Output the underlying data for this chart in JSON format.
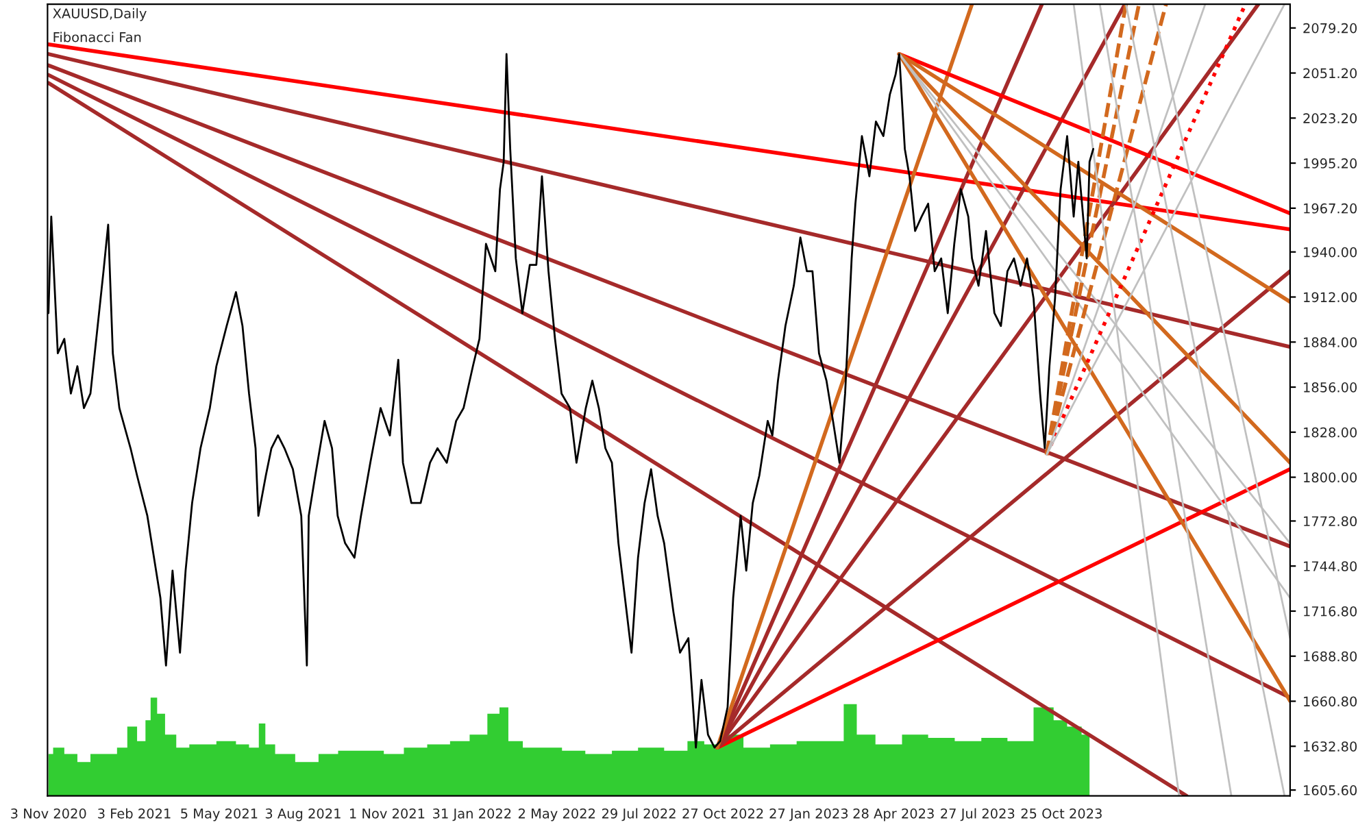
{
  "chart_data": {
    "type": "line",
    "title": "XAUUSD,Daily",
    "subtitle": "Fibonacci Fan",
    "xlim": [
      "2020-11-02",
      "2024-06-26"
    ],
    "ylim": [
      1602,
      2094
    ],
    "xticks": [
      {
        "value": "2020-11-03",
        "label": "3 Nov 2020"
      },
      {
        "value": "2021-02-03",
        "label": "3 Feb 2021"
      },
      {
        "value": "2021-05-05",
        "label": "5 May 2021"
      },
      {
        "value": "2021-08-03",
        "label": "3 Aug 2021"
      },
      {
        "value": "2021-11-01",
        "label": "1 Nov 2021"
      },
      {
        "value": "2022-01-31",
        "label": "31 Jan 2022"
      },
      {
        "value": "2022-05-02",
        "label": "2 May 2022"
      },
      {
        "value": "2022-07-29",
        "label": "29 Jul 2022"
      },
      {
        "value": "2022-10-27",
        "label": "27 Oct 2022"
      },
      {
        "value": "2023-01-27",
        "label": "27 Jan 2023"
      },
      {
        "value": "2023-04-28",
        "label": "28 Apr 2023"
      },
      {
        "value": "2023-07-27",
        "label": "27 Jul 2023"
      },
      {
        "value": "2023-10-25",
        "label": "25 Oct 2023"
      }
    ],
    "yticks": [
      {
        "value": 1605.6,
        "label": "1605.60"
      },
      {
        "value": 1632.8,
        "label": "1632.80"
      },
      {
        "value": 1660.8,
        "label": "1660.80"
      },
      {
        "value": 1688.8,
        "label": "1688.80"
      },
      {
        "value": 1716.8,
        "label": "1716.80"
      },
      {
        "value": 1744.8,
        "label": "1744.80"
      },
      {
        "value": 1772.8,
        "label": "1772.80"
      },
      {
        "value": 1800,
        "label": "1800.00"
      },
      {
        "value": 1828,
        "label": "1828.00"
      },
      {
        "value": 1856,
        "label": "1856.00"
      },
      {
        "value": 1884,
        "label": "1884.00"
      },
      {
        "value": 1912,
        "label": "1912.00"
      },
      {
        "value": 1940,
        "label": "1940.00"
      },
      {
        "value": 1967.2,
        "label": "1967.20"
      },
      {
        "value": 1995.2,
        "label": "1995.20"
      },
      {
        "value": 2023.2,
        "label": "2023.20"
      },
      {
        "value": 2051.2,
        "label": "2051.20"
      },
      {
        "value": 2079.2,
        "label": "2079.20"
      }
    ],
    "grid": false,
    "legend": false,
    "series": [
      {
        "type": "area",
        "color": "#32cd32",
        "x": [
          "2020-11-03",
          "2020-11-13",
          "2020-11-27",
          "2020-12-11",
          "2020-12-25",
          "2021-01-08",
          "2021-01-23",
          "2021-01-30",
          "2021-02-13",
          "2021-02-17",
          "2021-02-24",
          "2021-03-03",
          "2021-03-13",
          "2021-03-27",
          "2021-04-10",
          "2021-04-25",
          "2021-05-09",
          "2021-05-16",
          "2021-05-30",
          "2021-06-13",
          "2021-06-20",
          "2021-06-27",
          "2021-07-11",
          "2021-08-09",
          "2021-08-30",
          "2021-09-20",
          "2021-10-18",
          "2021-11-08",
          "2021-11-30",
          "2021-12-28",
          "2022-01-18",
          "2022-02-08",
          "2022-02-25",
          "2022-03-06",
          "2022-03-16",
          "2022-04-06",
          "2022-04-27",
          "2022-05-18",
          "2022-06-16",
          "2022-07-14",
          "2022-08-11",
          "2022-09-08",
          "2022-09-30",
          "2022-10-14",
          "2022-11-04",
          "2022-12-02",
          "2022-12-31",
          "2023-01-28",
          "2023-02-25",
          "2023-03-14",
          "2023-03-25",
          "2023-04-23",
          "2023-05-21",
          "2023-06-18",
          "2023-07-17",
          "2023-08-14",
          "2023-09-11",
          "2023-10-09",
          "2023-10-24",
          "2023-11-07",
          "2023-11-24"
        ],
        "values": [
          1628,
          1632,
          1628,
          1623,
          1628,
          1628,
          1632,
          1645,
          1636,
          1649,
          1663,
          1653,
          1640,
          1632,
          1634,
          1634,
          1636,
          1636,
          1634,
          1632,
          1647,
          1634,
          1628,
          1623,
          1628,
          1630,
          1630,
          1628,
          1632,
          1634,
          1636,
          1640,
          1653,
          1657,
          1636,
          1632,
          1632,
          1630,
          1628,
          1630,
          1632,
          1630,
          1636,
          1634,
          1640,
          1632,
          1634,
          1636,
          1636,
          1659,
          1640,
          1634,
          1640,
          1638,
          1636,
          1638,
          1636,
          1657,
          1649,
          1645,
          1640
        ]
      },
      {
        "color": "#000000",
        "x": [
          "2020-11-03",
          "2020-11-06",
          "2020-11-13",
          "2020-11-20",
          "2020-11-27",
          "2020-12-04",
          "2020-12-11",
          "2020-12-18",
          "2021-01-01",
          "2021-01-06",
          "2021-01-11",
          "2021-01-18",
          "2021-01-30",
          "2021-02-06",
          "2021-02-17",
          "2021-03-03",
          "2021-03-09",
          "2021-03-16",
          "2021-03-24",
          "2021-03-30",
          "2021-04-06",
          "2021-04-15",
          "2021-04-25",
          "2021-05-02",
          "2021-05-13",
          "2021-05-23",
          "2021-05-30",
          "2021-06-06",
          "2021-06-13",
          "2021-06-16",
          "2021-06-24",
          "2021-06-30",
          "2021-07-07",
          "2021-07-14",
          "2021-07-23",
          "2021-08-01",
          "2021-08-07",
          "2021-08-09",
          "2021-08-16",
          "2021-08-26",
          "2021-09-03",
          "2021-09-09",
          "2021-09-17",
          "2021-09-27",
          "2021-10-04",
          "2021-10-14",
          "2021-10-25",
          "2021-11-04",
          "2021-11-13",
          "2021-11-18",
          "2021-11-27",
          "2021-12-07",
          "2021-12-17",
          "2021-12-25",
          "2022-01-04",
          "2022-01-14",
          "2022-01-22",
          "2022-02-01",
          "2022-02-08",
          "2022-02-15",
          "2022-02-25",
          "2022-03-02",
          "2022-03-06",
          "2022-03-09",
          "2022-03-13",
          "2022-03-19",
          "2022-03-26",
          "2022-04-03",
          "2022-04-10",
          "2022-04-16",
          "2022-04-23",
          "2022-04-30",
          "2022-05-07",
          "2022-05-16",
          "2022-05-23",
          "2022-06-02",
          "2022-06-09",
          "2022-06-16",
          "2022-06-23",
          "2022-06-30",
          "2022-07-07",
          "2022-07-14",
          "2022-07-21",
          "2022-07-28",
          "2022-08-04",
          "2022-08-11",
          "2022-08-18",
          "2022-08-25",
          "2022-09-04",
          "2022-09-11",
          "2022-09-20",
          "2022-09-28",
          "2022-10-04",
          "2022-10-11",
          "2022-10-18",
          "2022-10-24",
          "2022-11-01",
          "2022-11-07",
          "2022-11-15",
          "2022-11-21",
          "2022-11-28",
          "2022-12-05",
          "2022-12-14",
          "2022-12-19",
          "2022-12-25",
          "2023-01-02",
          "2023-01-11",
          "2023-01-18",
          "2023-01-25",
          "2023-01-31",
          "2023-02-07",
          "2023-02-15",
          "2023-02-22",
          "2023-03-01",
          "2023-03-07",
          "2023-03-14",
          "2023-03-18",
          "2023-03-25",
          "2023-04-02",
          "2023-04-09",
          "2023-04-17",
          "2023-04-24",
          "2023-04-30",
          "2023-05-04",
          "2023-05-10",
          "2023-05-15",
          "2023-05-21",
          "2023-05-28",
          "2023-06-04",
          "2023-06-11",
          "2023-06-18",
          "2023-06-25",
          "2023-07-02",
          "2023-07-09",
          "2023-07-17",
          "2023-07-21",
          "2023-07-28",
          "2023-08-05",
          "2023-08-14",
          "2023-08-21",
          "2023-08-28",
          "2023-09-04",
          "2023-09-11",
          "2023-09-18",
          "2023-09-25",
          "2023-10-02",
          "2023-10-07",
          "2023-10-12",
          "2023-10-18",
          "2023-10-24",
          "2023-10-31",
          "2023-11-07",
          "2023-11-12",
          "2023-11-21",
          "2023-11-24",
          "2023-11-28"
        ],
        "values": [
          1902,
          1962,
          1877,
          1886,
          1852,
          1869,
          1843,
          1852,
          1928,
          1957,
          1877,
          1843,
          1818,
          1801,
          1776,
          1725,
          1683,
          1742,
          1691,
          1742,
          1784,
          1818,
          1843,
          1869,
          1894,
          1915,
          1894,
          1852,
          1818,
          1776,
          1801,
          1818,
          1826,
          1818,
          1805,
          1776,
          1683,
          1776,
          1801,
          1835,
          1818,
          1776,
          1759,
          1750,
          1776,
          1809,
          1843,
          1826,
          1873,
          1809,
          1784,
          1784,
          1809,
          1818,
          1809,
          1835,
          1843,
          1869,
          1886,
          1945,
          1928,
          1979,
          1996,
          2063,
          2004,
          1936,
          1902,
          1932,
          1932,
          1987,
          1928,
          1886,
          1852,
          1843,
          1809,
          1843,
          1860,
          1843,
          1818,
          1809,
          1759,
          1725,
          1691,
          1750,
          1784,
          1805,
          1776,
          1759,
          1716,
          1691,
          1700,
          1632,
          1674,
          1640,
          1632,
          1636,
          1657,
          1725,
          1776,
          1742,
          1784,
          1801,
          1835,
          1826,
          1860,
          1894,
          1919,
          1949,
          1928,
          1928,
          1877,
          1860,
          1835,
          1809,
          1852,
          1936,
          1970,
          2012,
          1987,
          2021,
          2012,
          2038,
          2050,
          2063,
          2004,
          1987,
          1953,
          1962,
          1970,
          1928,
          1936,
          1902,
          1945,
          1979,
          1962,
          1936,
          1919,
          1953,
          1902,
          1894,
          1928,
          1936,
          1919,
          1936,
          1911,
          1852,
          1818,
          1869,
          1911,
          1979,
          2012,
          1962,
          1996,
          1936,
          1996,
          2004
        ]
      },
      {
        "color": "#ff0000",
        "x": [
          "2020-11-03",
          "2024-06-26"
        ],
        "values": [
          2069,
          1954
        ]
      },
      {
        "color": "#a52a2a",
        "x": [
          "2020-11-03",
          "2024-06-26"
        ],
        "values": [
          2063,
          1881
        ]
      },
      {
        "color": "#a52a2a",
        "x": [
          "2020-11-03",
          "2024-06-26"
        ],
        "values": [
          2056,
          1757
        ]
      },
      {
        "color": "#a52a2a",
        "x": [
          "2020-11-03",
          "2024-06-26"
        ],
        "values": [
          2050,
          1663
        ]
      },
      {
        "color": "#a52a2a",
        "x": [
          "2020-11-03",
          "2024-03-07"
        ],
        "values": [
          2045,
          1602
        ]
      },
      {
        "color": "#ff0000",
        "x": [
          "2022-10-21",
          "2024-06-26"
        ],
        "values": [
          1632,
          1805
        ]
      },
      {
        "color": "#a52a2a",
        "x": [
          "2022-10-21",
          "2024-06-26"
        ],
        "values": [
          1632,
          1928
        ]
      },
      {
        "color": "#a52a2a",
        "x": [
          "2022-10-21",
          "2024-05-23"
        ],
        "values": [
          1632,
          2094
        ]
      },
      {
        "color": "#a52a2a",
        "x": [
          "2022-10-21",
          "2024-01-01"
        ],
        "values": [
          1632,
          2094
        ]
      },
      {
        "color": "#a52a2a",
        "x": [
          "2022-10-21",
          "2023-10-04"
        ],
        "values": [
          1632,
          2094
        ]
      },
      {
        "color": "#d2691e",
        "x": [
          "2022-10-21",
          "2023-07-21"
        ],
        "values": [
          1632,
          2094
        ]
      },
      {
        "color": "#ff0000",
        "x": [
          "2023-05-04",
          "2024-06-26"
        ],
        "values": [
          2063,
          1964
        ]
      },
      {
        "color": "#d2691e",
        "x": [
          "2023-05-04",
          "2024-06-26"
        ],
        "values": [
          2063,
          1909
        ]
      },
      {
        "color": "#d2691e",
        "x": [
          "2023-05-04",
          "2024-06-26"
        ],
        "values": [
          2063,
          1809
        ]
      },
      {
        "color": "#d2691e",
        "x": [
          "2023-05-04",
          "2024-06-26"
        ],
        "values": [
          2063,
          1661
        ]
      },
      {
        "color": "#c0c0c0",
        "x": [
          "2023-05-04",
          "2024-06-26"
        ],
        "values": [
          2063,
          1725
        ]
      },
      {
        "color": "#c0c0c0",
        "x": [
          "2023-05-04",
          "2024-06-26"
        ],
        "values": [
          2063,
          1759
        ]
      },
      {
        "color": "#ff0000",
        "line_style": "dotted",
        "x": [
          "2023-10-09",
          "2024-05-09"
        ],
        "values": [
          1814,
          2094
        ]
      },
      {
        "color": "#d2691e",
        "line_style": "dashed",
        "x": [
          "2023-10-09",
          "2024-02-14"
        ],
        "values": [
          1814,
          2094
        ]
      },
      {
        "color": "#d2691e",
        "line_style": "dashed",
        "x": [
          "2023-10-09",
          "2024-01-16"
        ],
        "values": [
          1814,
          2094
        ]
      },
      {
        "color": "#d2691e",
        "line_style": "dashed",
        "x": [
          "2023-10-09",
          "2024-01-02"
        ],
        "values": [
          1814,
          2094
        ]
      },
      {
        "color": "#c0c0c0",
        "x": [
          "2023-10-09",
          "2024-03-27"
        ],
        "values": [
          1814,
          2094
        ]
      },
      {
        "color": "#c0c0c0",
        "x": [
          "2023-10-09",
          "2024-06-20"
        ],
        "values": [
          1814,
          2094
        ]
      },
      {
        "color": "#c0c0c0",
        "x": [
          "2023-11-07",
          "2024-02-28"
        ],
        "values": [
          2094,
          1602
        ]
      },
      {
        "color": "#c0c0c0",
        "x": [
          "2023-12-05",
          "2024-04-24"
        ],
        "values": [
          2094,
          1602
        ]
      },
      {
        "color": "#c0c0c0",
        "x": [
          "2024-01-02",
          "2024-06-20"
        ],
        "values": [
          2094,
          1602
        ]
      },
      {
        "color": "#c0c0c0",
        "x": [
          "2024-01-31",
          "2024-06-26"
        ],
        "values": [
          2094,
          1700
        ]
      }
    ]
  }
}
